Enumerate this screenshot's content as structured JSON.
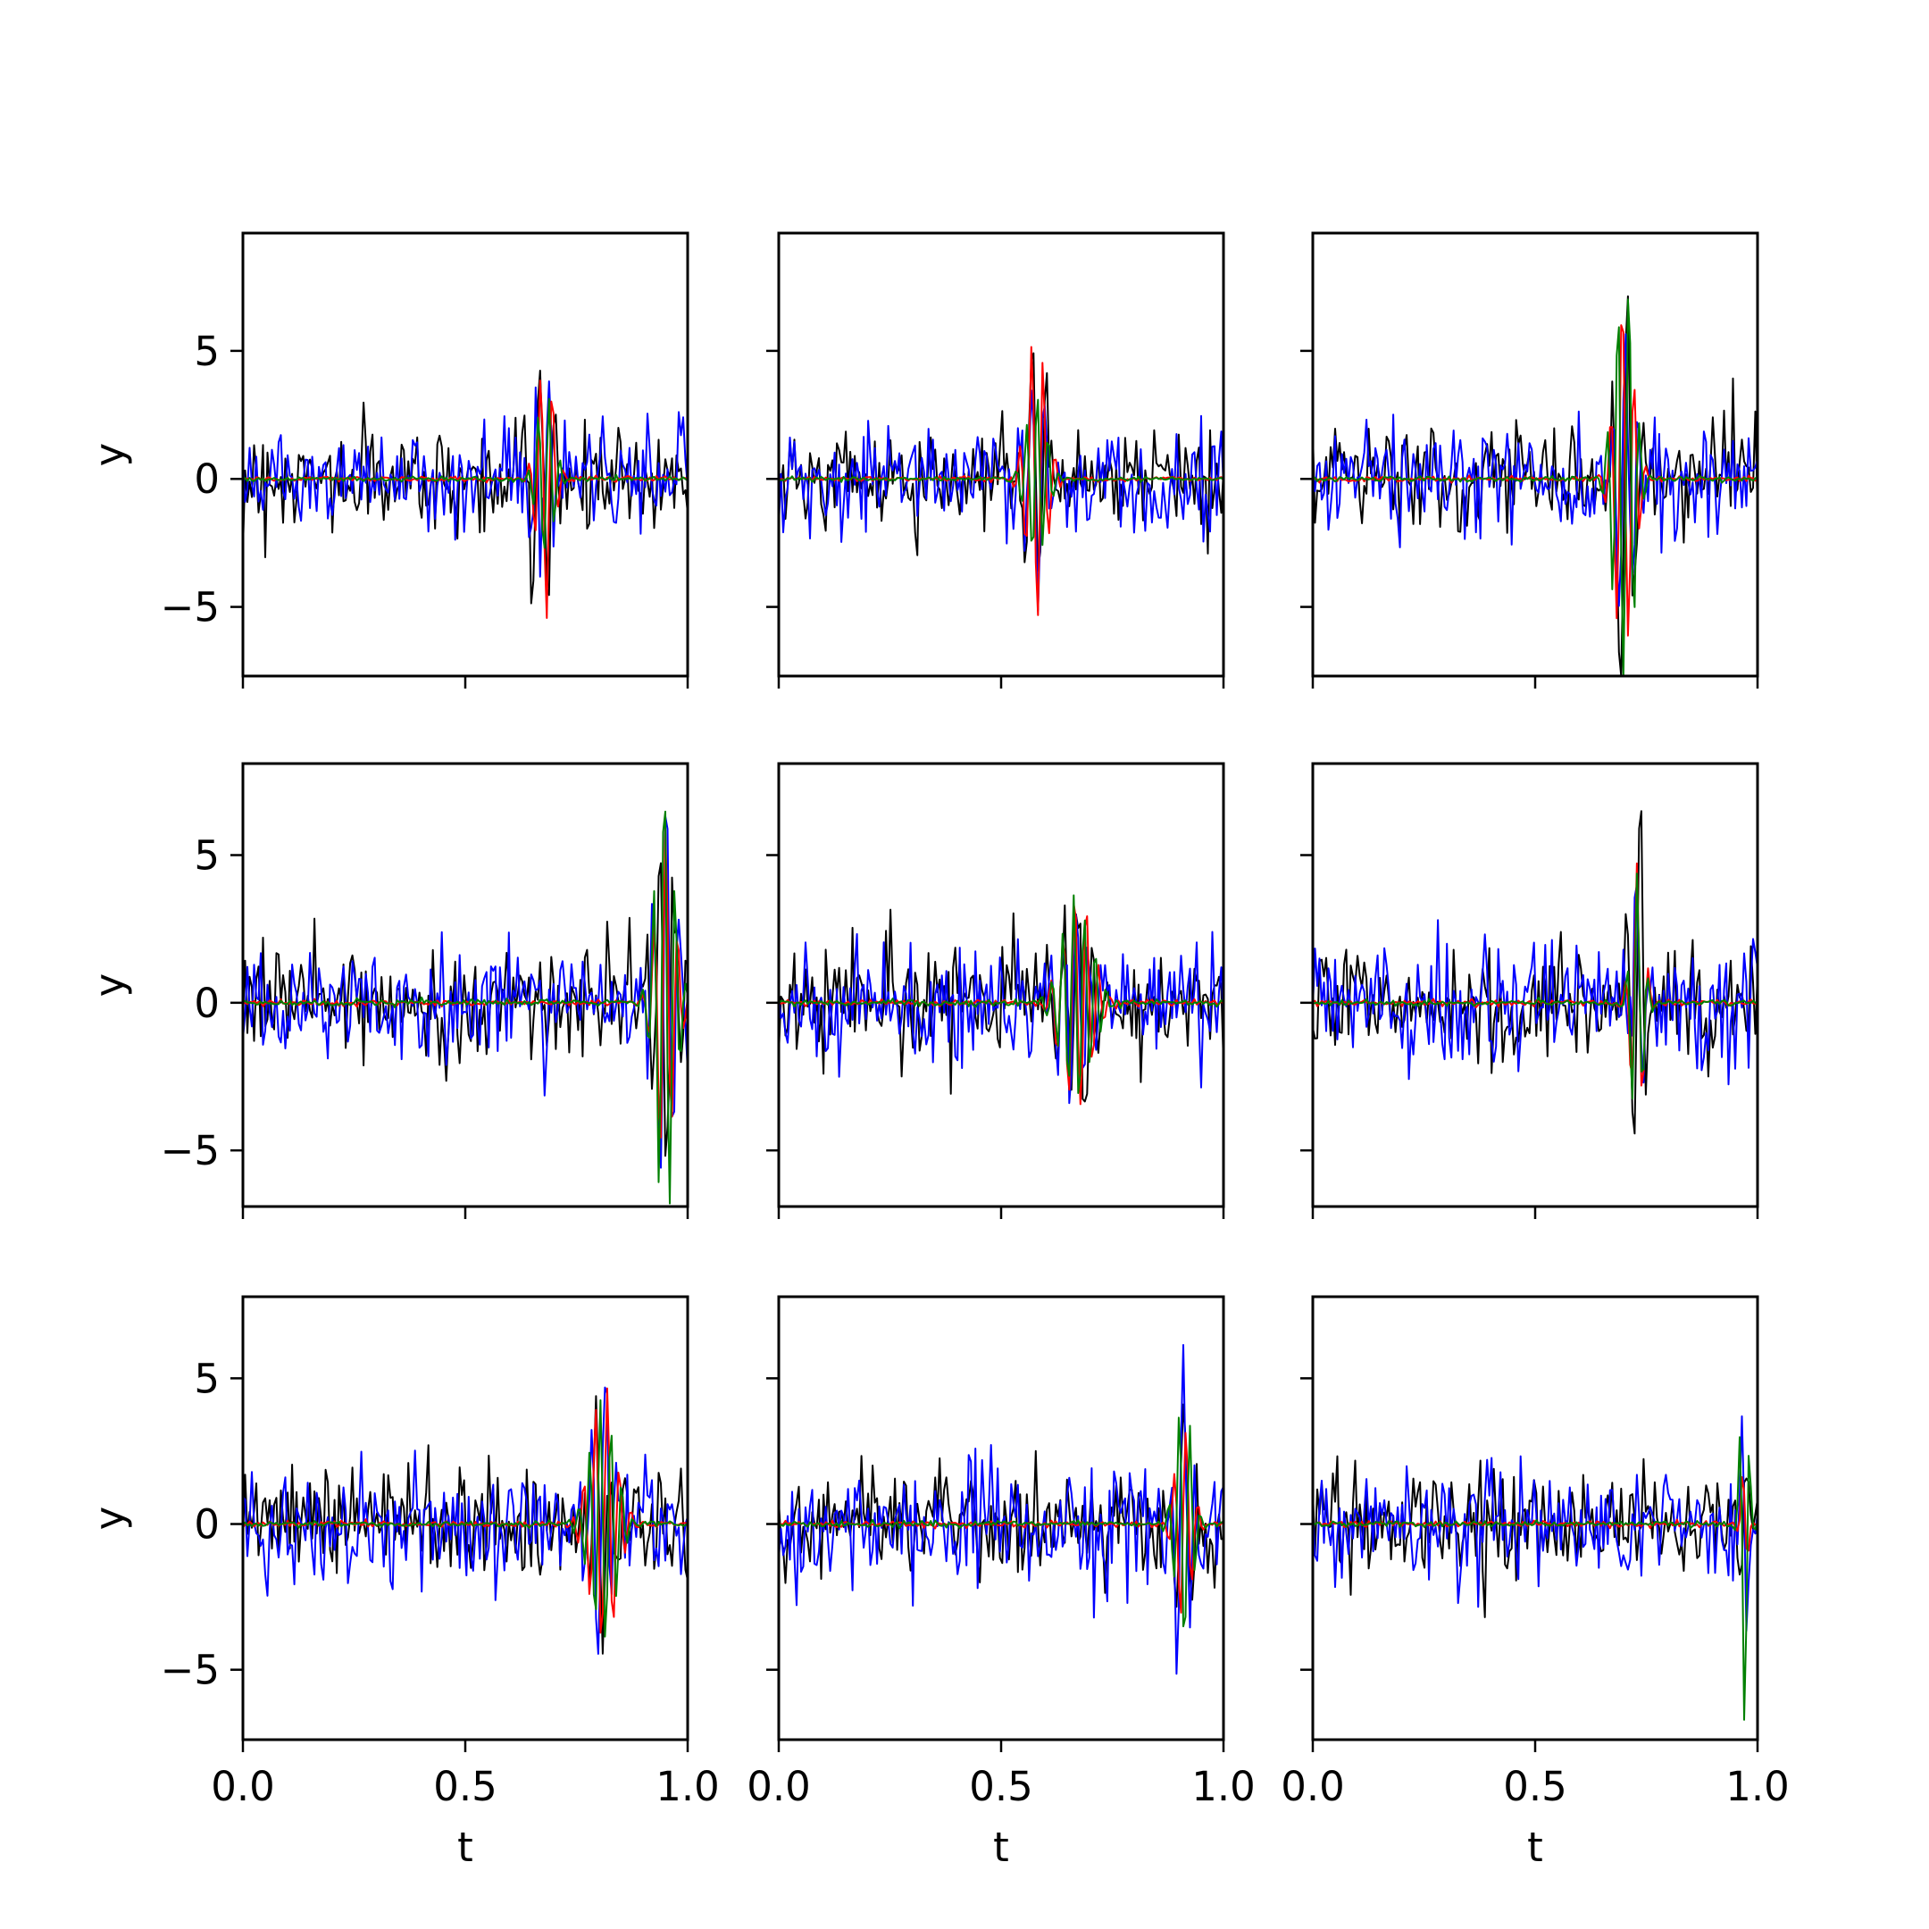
{
  "chart_data": {
    "type": "line",
    "layout": {
      "rows": 3,
      "cols": 3,
      "sharex": true,
      "sharey": "row"
    },
    "xlabel": "t",
    "ylabel": "y",
    "xlim": [
      0.0,
      1.0
    ],
    "xticks": [
      0.0,
      0.5,
      1.0
    ],
    "xtick_labels": [
      "0.0",
      "0.5",
      "1.0"
    ],
    "yticks": [
      -5,
      0,
      5
    ],
    "ytick_labels": [
      "−5",
      "0",
      "5"
    ],
    "row_ylim": [
      [
        -7.7,
        9.6
      ],
      [
        -6.9,
        8.1
      ],
      [
        -7.4,
        7.8
      ]
    ],
    "series_colors": [
      "#000000",
      "#0000ff",
      "#ff0000",
      "#008000"
    ],
    "n_points": 200,
    "noise_amplitude": [
      1.0,
      1.0,
      0.05,
      0.05
    ],
    "panels": [
      {
        "burst_center": 0.68,
        "burst_width": 0.025,
        "peaks": [
          5.3,
          3.5,
          5.0,
          3.6
        ]
      },
      {
        "burst_center": 0.58,
        "burst_width": 0.03,
        "peaks": [
          5.8,
          4.0,
          5.6,
          3.5
        ]
      },
      {
        "burst_center": 0.7,
        "burst_width": 0.03,
        "peaks": [
          7.4,
          6.4,
          7.0,
          8.8
        ]
      },
      {
        "burst_center": 0.95,
        "burst_width": 0.03,
        "peaks": [
          6.2,
          6.2,
          5.5,
          7.3
        ]
      },
      {
        "burst_center": 0.67,
        "burst_width": 0.045,
        "peaks": [
          4.0,
          3.5,
          4.0,
          3.7
        ]
      },
      {
        "burst_center": 0.73,
        "burst_width": 0.02,
        "peaks": [
          6.8,
          4.6,
          4.6,
          4.2
        ]
      },
      {
        "burst_center": 0.81,
        "burst_width": 0.04,
        "peaks": [
          3.8,
          3.3,
          4.6,
          4.0
        ]
      },
      {
        "burst_center": 0.91,
        "burst_width": 0.025,
        "peaks": [
          3.5,
          5.7,
          3.5,
          4.4
        ]
      },
      {
        "burst_center": 0.97,
        "burst_width": 0.012,
        "peaks": [
          1.5,
          4.2,
          1.8,
          7.0
        ]
      }
    ]
  }
}
